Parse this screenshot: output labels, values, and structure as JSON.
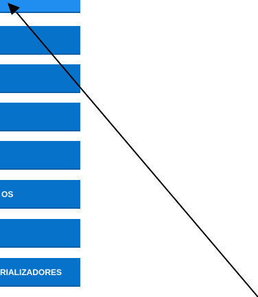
{
  "menu": {
    "items": [
      {
        "label": ""
      },
      {
        "label": ""
      },
      {
        "label": ""
      },
      {
        "label": ""
      },
      {
        "label": ""
      },
      {
        "label": "OS"
      },
      {
        "label": ""
      },
      {
        "label": "RIALIZADORES"
      }
    ]
  },
  "colors": {
    "button": "#0672c9",
    "button_active": "#1f8ef0",
    "arrow": "#000000"
  },
  "annotation": {
    "icon": "arrow-pointer-icon"
  }
}
